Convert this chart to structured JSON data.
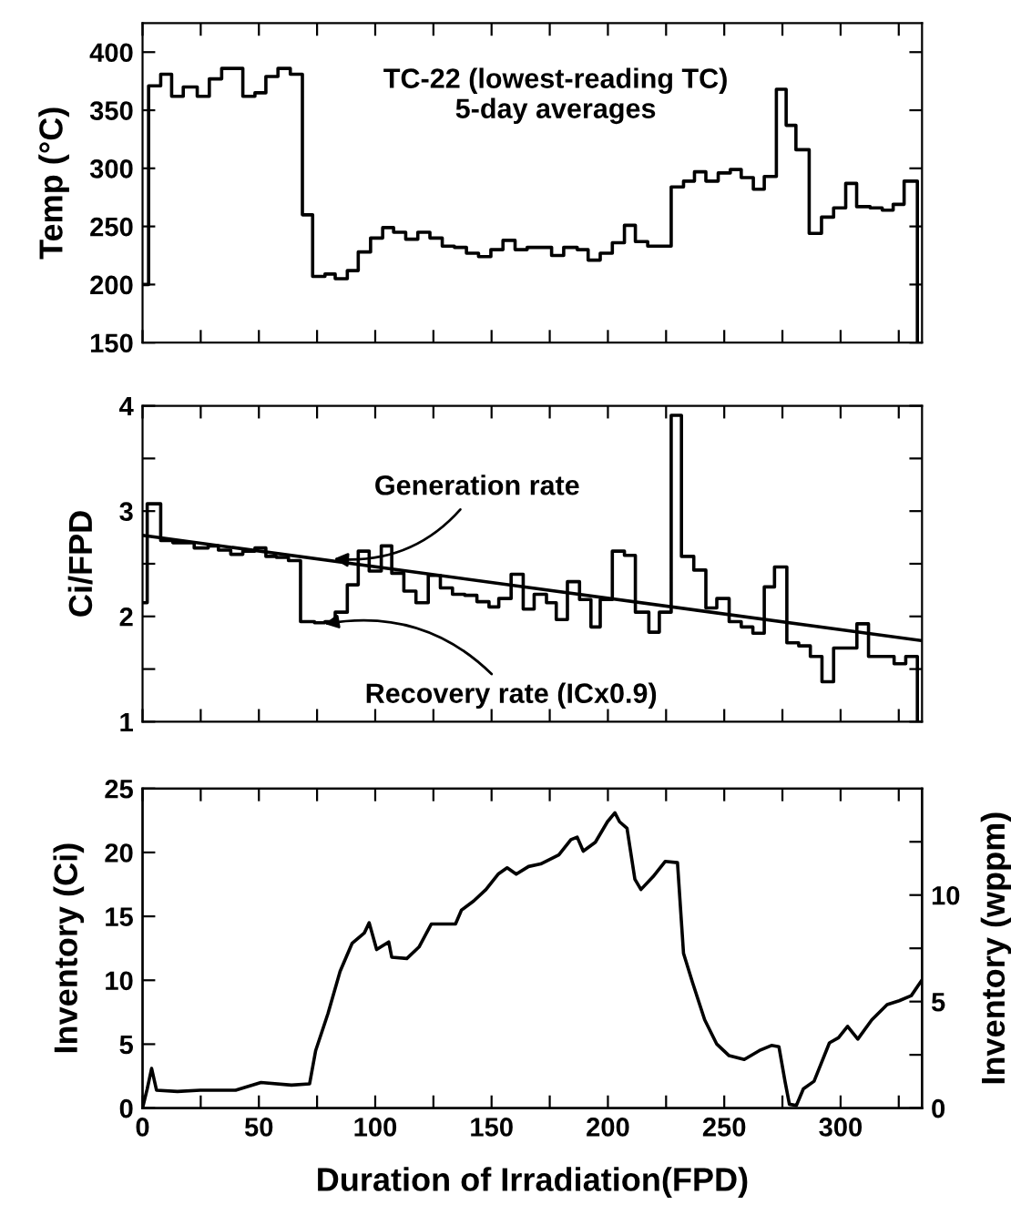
{
  "chart_data": [
    {
      "type": "step",
      "ylabel": "Temp (°C)",
      "annotations": [
        "TC-22 (lowest-reading TC)\n5-day averages"
      ],
      "xlim": [
        0,
        335
      ],
      "ylim": [
        150,
        425
      ],
      "tick_labels": "y",
      "xticks": [
        0,
        {
          "value": 25,
          "label": null
        },
        50,
        {
          "value": 75,
          "label": null
        },
        100,
        {
          "value": 125,
          "label": null
        },
        150,
        {
          "value": 175,
          "label": null
        },
        200,
        {
          "value": 225,
          "label": null
        },
        250,
        {
          "value": 275,
          "label": null
        },
        300,
        {
          "value": 325,
          "label": null
        }
      ],
      "yticks": [
        150,
        200,
        250,
        300,
        350,
        400
      ],
      "series": [
        {
          "color": "#000000",
          "x": [
            0,
            2.6,
            7.8,
            12.5,
            17.5,
            23.5,
            28.7,
            34,
            43.1,
            48.3,
            53,
            58.2,
            63.5,
            68.7,
            73.1,
            78.4,
            82.8,
            88,
            92.7,
            98,
            103.2,
            107.9,
            113.1,
            118.3,
            123.5,
            128.8,
            134,
            139.2,
            144.4,
            149.7,
            154.9,
            160.1,
            165.3,
            170.6,
            175.8,
            181,
            186.8,
            191.5,
            196.7,
            201.9,
            207.1,
            211.8,
            217.1,
            227.2,
            232.5,
            237.2,
            242.1,
            247.4,
            252.6,
            257.3,
            262.5,
            267.2,
            272.4,
            276.6,
            280.8,
            286.5,
            291.8,
            297,
            302.2,
            306.9,
            312.7,
            317.9,
            322.6,
            327.3,
            333
          ],
          "values": [
            200,
            371,
            381,
            362,
            370,
            362,
            377,
            386,
            362,
            365,
            379,
            386,
            381,
            260,
            207,
            209,
            205,
            212,
            228,
            240,
            249,
            245,
            239,
            245,
            240,
            233,
            232,
            227,
            224,
            230,
            238,
            230,
            232,
            232,
            225,
            232,
            230,
            221,
            227,
            236,
            251,
            237,
            233,
            284,
            289,
            297,
            289,
            296,
            299,
            292,
            282,
            293,
            368,
            337,
            316,
            244,
            258,
            266,
            287,
            267,
            266,
            264,
            269,
            289,
            150
          ]
        }
      ]
    },
    {
      "type": "step",
      "ylabel": "Ci/FPD",
      "annotations": [
        {
          "text": "Generation rate",
          "x": 80,
          "y": 2.55
        },
        {
          "text": "Recovery rate (ICx0.9)",
          "x": 76,
          "y": 1.92
        }
      ],
      "xlim": [
        0,
        335
      ],
      "ylim": [
        1,
        4
      ],
      "tick_labels": "y",
      "xticks": [
        0,
        {
          "value": 25,
          "label": null
        },
        50,
        {
          "value": 75,
          "label": null
        },
        100,
        {
          "value": 125,
          "label": null
        },
        150,
        {
          "value": 175,
          "label": null
        },
        200,
        {
          "value": 225,
          "label": null
        },
        250,
        {
          "value": 275,
          "label": null
        },
        300,
        {
          "value": 325,
          "label": null
        }
      ],
      "yticks": [
        1,
        {
          "value": 1.5,
          "label": null
        },
        2,
        {
          "value": 2.5,
          "label": null
        },
        3,
        {
          "value": 3.5,
          "label": null
        },
        4
      ],
      "series": [
        {
          "color": "#000000",
          "x": [
            0,
            2,
            7.8,
            13,
            22.2,
            28.2,
            32.6,
            37.9,
            43.1,
            48.3,
            53,
            57.5,
            62.7,
            67.9,
            73.9,
            78.4,
            82.8,
            88,
            92.7,
            97.4,
            102.6,
            107.1,
            112.3,
            117.5,
            122.8,
            128,
            133.2,
            138.5,
            143.7,
            148.9,
            153.1,
            158.4,
            163.6,
            168.3,
            173.6,
            177.8,
            182.6,
            187.8,
            192.7,
            196.7,
            201.9,
            207.1,
            211.8,
            217.6,
            222.1,
            227.2,
            231.6,
            236.9,
            242.1,
            246.8,
            252.1,
            257.3,
            262.3,
            267.2,
            271.6,
            276.9,
            282,
            287,
            292,
            297,
            302,
            307,
            312,
            318,
            323,
            328,
            333
          ],
          "values": [
            2.13,
            3.07,
            2.72,
            2.7,
            2.65,
            2.67,
            2.63,
            2.59,
            2.62,
            2.65,
            2.57,
            2.56,
            2.53,
            1.95,
            1.94,
            1.95,
            2.04,
            2.3,
            2.62,
            2.43,
            2.67,
            2.41,
            2.24,
            2.13,
            2.39,
            2.27,
            2.21,
            2.2,
            2.14,
            2.09,
            2.17,
            2.4,
            2.07,
            2.21,
            2.13,
            1.97,
            2.33,
            2.16,
            1.9,
            2.16,
            2.62,
            2.58,
            2.04,
            1.85,
            2.04,
            3.91,
            2.57,
            2.44,
            2.08,
            2.17,
            1.95,
            1.9,
            1.84,
            2.28,
            2.47,
            1.75,
            1.72,
            1.62,
            1.38,
            1.7,
            1.7,
            1.93,
            1.62,
            1.62,
            1.55,
            1.62,
            1.0
          ]
        },
        {
          "type": "line",
          "color": "#000000",
          "x": [
            0,
            335
          ],
          "values": [
            2.77,
            1.77
          ]
        }
      ]
    },
    {
      "type": "line",
      "ylabel": "Inventory (Ci)",
      "xlabel": "Duration of Irradiation(FPD)",
      "y2label": "Inventory (wppm)",
      "xlim": [
        0,
        335
      ],
      "ylim": [
        0,
        25
      ],
      "y2lim": [
        0,
        15
      ],
      "xticks": [
        0,
        {
          "value": 25,
          "label": null
        },
        50,
        {
          "value": 75,
          "label": null
        },
        100,
        {
          "value": 125,
          "label": null
        },
        150,
        {
          "value": 175,
          "label": null
        },
        200,
        {
          "value": 225,
          "label": null
        },
        250,
        {
          "value": 275,
          "label": null
        },
        300,
        {
          "value": 325,
          "label": null
        }
      ],
      "yticks": [
        0,
        5,
        10,
        15,
        20,
        25
      ],
      "y2ticks": [
        0,
        {
          "value": 2.5,
          "label": null
        },
        5,
        {
          "value": 7.5,
          "label": null
        },
        10,
        {
          "value": 12.5,
          "label": null
        }
      ],
      "series": [
        {
          "color": "#000000",
          "x": [
            0,
            2,
            3.9,
            6,
            15,
            24.8,
            40,
            50.9,
            64,
            71.8,
            74.4,
            79.7,
            84.9,
            90.1,
            95.3,
            97.4,
            100.6,
            105.8,
            107.1,
            113.6,
            118.8,
            124.1,
            134.5,
            137.1,
            142.3,
            147.6,
            152.8,
            156.7,
            160.6,
            165.9,
            171.1,
            178.9,
            184.1,
            186.8,
            189.4,
            194.6,
            199.8,
            203,
            205,
            208.2,
            211.6,
            214.2,
            219.4,
            224.6,
            229.9,
            232.5,
            236.4,
            241.6,
            246.8,
            252.1,
            258.6,
            265.1,
            270.3,
            273.5,
            276.1,
            278,
            281,
            284,
            288.6,
            295.2,
            299.1,
            303,
            307.4,
            313.4,
            320,
            325.2,
            330.4,
            334.9
          ],
          "values": [
            0,
            1.5,
            3.1,
            1.4,
            1.3,
            1.4,
            1.4,
            2.0,
            1.8,
            1.9,
            4.5,
            7.4,
            10.7,
            12.9,
            13.7,
            14.5,
            12.4,
            13.0,
            11.8,
            11.7,
            12.6,
            14.4,
            14.4,
            15.5,
            16.2,
            17.1,
            18.3,
            18.8,
            18.3,
            18.9,
            19.1,
            19.8,
            21.0,
            21.2,
            20.1,
            20.8,
            22.4,
            23.1,
            22.4,
            21.9,
            17.9,
            17.1,
            18.1,
            19.3,
            19.2,
            12.1,
            9.8,
            6.9,
            5.0,
            4.1,
            3.8,
            4.5,
            4.9,
            4.8,
            2.1,
            0.3,
            0.2,
            1.5,
            2.1,
            5.1,
            5.5,
            6.4,
            5.4,
            6.9,
            8.1,
            8.4,
            8.8,
            10.0
          ]
        }
      ]
    }
  ]
}
